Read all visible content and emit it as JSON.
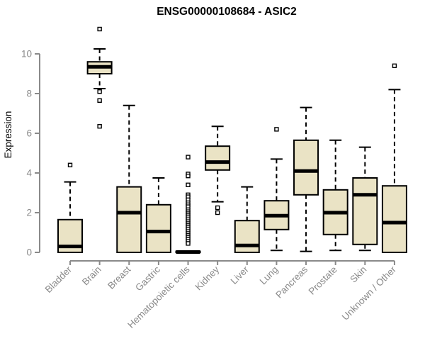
{
  "chart_data": {
    "type": "boxplot",
    "title": "ENSG00000108684 - ASIC2",
    "xlabel": "",
    "ylabel": "Expression",
    "ylim": [
      0,
      11.5
    ],
    "yticks": [
      0,
      2,
      4,
      6,
      8,
      10
    ],
    "grid": false,
    "legend": "none",
    "categories": [
      "Bladder",
      "Brain",
      "Breast",
      "Gastric",
      "Hematopoietic cells",
      "Kidney",
      "Liver",
      "Lung",
      "Pancreas",
      "Prostate",
      "Skin",
      "Unknown / Other"
    ],
    "series": [
      {
        "name": "Bladder",
        "whislo": 0,
        "q1": 0,
        "med": 0.3,
        "q3": 1.65,
        "whishi": 3.55,
        "outliers": [
          4.4
        ]
      },
      {
        "name": "Brain",
        "whislo": 8.25,
        "q1": 9.0,
        "med": 9.35,
        "q3": 9.6,
        "whishi": 10.25,
        "outliers": [
          11.25,
          8.1,
          7.65,
          6.35
        ]
      },
      {
        "name": "Breast",
        "whislo": 0,
        "q1": 0,
        "med": 2.0,
        "q3": 3.3,
        "whishi": 7.4,
        "outliers": []
      },
      {
        "name": "Gastric",
        "whislo": 0,
        "q1": 0,
        "med": 1.05,
        "q3": 2.4,
        "whishi": 3.75,
        "outliers": []
      },
      {
        "name": "Hematopoietic cells",
        "whislo": 0,
        "q1": 0,
        "med": 0.02,
        "q3": 0.05,
        "whishi": 0.1,
        "outliers": [
          4.8,
          3.95,
          3.85,
          3.4,
          2.9,
          2.8,
          2.65,
          2.5,
          2.4,
          2.3,
          2.15,
          2.05,
          1.95,
          1.85,
          1.75,
          1.65,
          1.55,
          1.45,
          1.35,
          1.25,
          1.15,
          1.05,
          0.95,
          0.85,
          0.75,
          0.65,
          0.55,
          0.45
        ]
      },
      {
        "name": "Kidney",
        "whislo": 2.55,
        "q1": 4.15,
        "med": 4.55,
        "q3": 5.35,
        "whishi": 6.35,
        "outliers": [
          2.25,
          2.0
        ]
      },
      {
        "name": "Liver",
        "whislo": 0,
        "q1": 0,
        "med": 0.35,
        "q3": 1.6,
        "whishi": 3.3,
        "outliers": []
      },
      {
        "name": "Lung",
        "whislo": 0.1,
        "q1": 1.15,
        "med": 1.85,
        "q3": 2.6,
        "whishi": 4.7,
        "outliers": [
          6.2
        ]
      },
      {
        "name": "Pancreas",
        "whislo": 0.05,
        "q1": 2.9,
        "med": 4.1,
        "q3": 5.65,
        "whishi": 7.3,
        "outliers": []
      },
      {
        "name": "Prostate",
        "whislo": 0.1,
        "q1": 0.9,
        "med": 2.0,
        "q3": 3.15,
        "whishi": 5.65,
        "outliers": []
      },
      {
        "name": "Skin",
        "whislo": 0.1,
        "q1": 0.4,
        "med": 2.9,
        "q3": 3.75,
        "whishi": 5.3,
        "outliers": []
      },
      {
        "name": "Unknown / Other",
        "whislo": 0,
        "q1": 0,
        "med": 1.5,
        "q3": 3.35,
        "whishi": 8.2,
        "outliers": [
          9.4
        ]
      }
    ],
    "colors": {
      "background": "#FFFFFF",
      "box_fill": "#EAE3C5",
      "box_border": "#000000",
      "median": "#000000",
      "whisker": "#000000",
      "outlier_fill": "#FFFFFF",
      "outlier_border": "#000000",
      "axis": "#8A8A8A",
      "tick_label": "#8A8A8A",
      "title": "#000000"
    }
  }
}
